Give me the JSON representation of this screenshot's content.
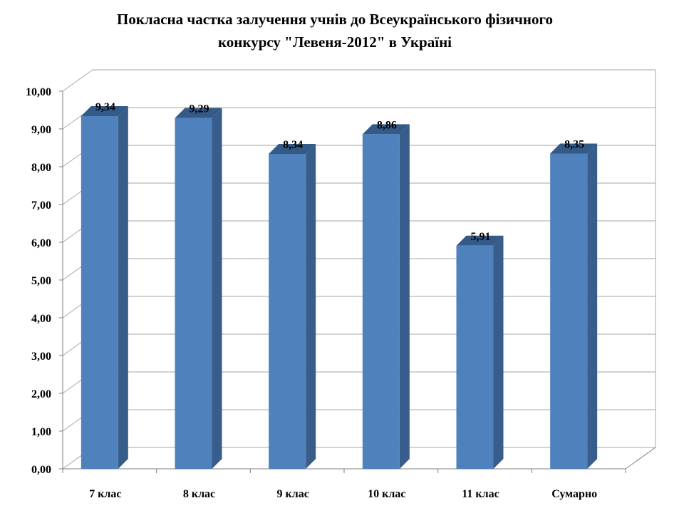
{
  "chart_data": {
    "type": "bar",
    "title_lines": [
      "Покласна частка залучення учнів до Всеукраїнського фізичного",
      "конкурсу \"Левеня-2012\" в Україні"
    ],
    "categories": [
      "7 клас",
      "8 клас",
      "9 клас",
      "10 клас",
      "11 клас",
      "Сумарно"
    ],
    "values": [
      9.34,
      9.29,
      8.34,
      8.86,
      5.91,
      8.35
    ],
    "value_labels": [
      "9,34",
      "9,29",
      "8,34",
      "8,86",
      "5,91",
      "8,35"
    ],
    "y_ticks": [
      "0,00",
      "1,00",
      "2,00",
      "3,00",
      "4,00",
      "5,00",
      "6,00",
      "7,00",
      "8,00",
      "9,00",
      "10,00"
    ],
    "ylim": [
      0,
      10
    ],
    "grid": true,
    "legend": "none",
    "colors": {
      "bar_front": "#4F81BD",
      "bar_side": "#385D8A",
      "bar_top": "#345A87",
      "gridline": "#A6A6A6",
      "axis": "#7F7F7F"
    }
  }
}
